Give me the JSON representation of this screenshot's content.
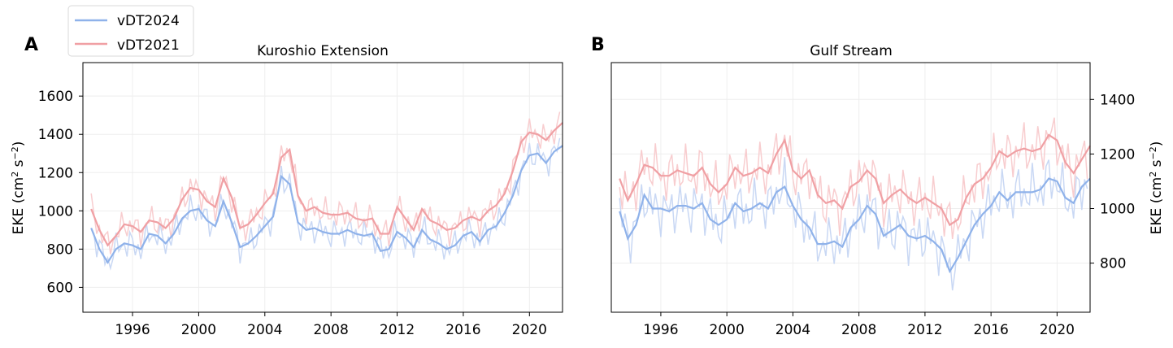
{
  "colors": {
    "vDT2024": "#8fb2ea",
    "vDT2021": "#f0a0a4",
    "vDT2024_raw": "#c9d8f4",
    "vDT2021_raw": "#f8cdcf"
  },
  "legend": {
    "placement": "top-left",
    "entries": [
      "vDT2024",
      "vDT2021"
    ]
  },
  "panels": [
    {
      "letter": "A",
      "title": "Kuroshio Extension"
    },
    {
      "letter": "B",
      "title": "Gulf Stream"
    }
  ],
  "chart_data": [
    {
      "type": "line",
      "panel": "A",
      "title": "Kuroshio Extension",
      "xlabel": "",
      "ylabel": "EKE (cm² s⁻²)",
      "ylabel_base": "EKE (cm",
      "ylabel_sup1": "2",
      "ylabel_mid": " s",
      "ylabel_sup2": "−2",
      "ylabel_end": ")",
      "yaxis_side": "left",
      "xlim": [
        1993.0,
        2022.0
      ],
      "ylim": [
        470,
        1775
      ],
      "xticks": [
        1996,
        2000,
        2004,
        2008,
        2012,
        2016,
        2020
      ],
      "yticks": [
        600,
        800,
        1000,
        1200,
        1400,
        1600
      ],
      "grid": true,
      "x": [
        1993.5,
        1994.0,
        1994.5,
        1995.0,
        1995.5,
        1996.0,
        1996.5,
        1997.0,
        1997.5,
        1998.0,
        1998.5,
        1999.0,
        1999.5,
        2000.0,
        2000.5,
        2001.0,
        2001.5,
        2002.0,
        2002.5,
        2003.0,
        2003.5,
        2004.0,
        2004.5,
        2005.0,
        2005.5,
        2006.0,
        2006.5,
        2007.0,
        2007.5,
        2008.0,
        2008.5,
        2009.0,
        2009.5,
        2010.0,
        2010.5,
        2011.0,
        2011.5,
        2012.0,
        2012.5,
        2013.0,
        2013.5,
        2014.0,
        2014.5,
        2015.0,
        2015.5,
        2016.0,
        2016.5,
        2017.0,
        2017.5,
        2018.0,
        2018.5,
        2019.0,
        2019.5,
        2020.0,
        2020.5,
        2021.0,
        2021.5,
        2022.0
      ],
      "series": [
        {
          "name": "vDT2024",
          "smooth": [
            910,
            800,
            730,
            800,
            830,
            820,
            800,
            880,
            870,
            830,
            880,
            960,
            1000,
            1010,
            950,
            920,
            1050,
            940,
            810,
            830,
            870,
            920,
            970,
            1180,
            1140,
            940,
            900,
            910,
            890,
            880,
            880,
            900,
            880,
            870,
            880,
            790,
            800,
            890,
            860,
            810,
            900,
            850,
            830,
            800,
            820,
            870,
            890,
            840,
            900,
            920,
            990,
            1080,
            1210,
            1290,
            1300,
            1250,
            1310,
            1340
          ]
        },
        {
          "name": "vDT2021",
          "smooth": [
            1010,
            900,
            820,
            870,
            930,
            920,
            890,
            950,
            940,
            910,
            960,
            1060,
            1120,
            1110,
            1050,
            1020,
            1170,
            1070,
            910,
            930,
            980,
            1040,
            1090,
            1280,
            1320,
            1080,
            1000,
            1020,
            990,
            980,
            980,
            990,
            960,
            950,
            960,
            880,
            880,
            1020,
            960,
            900,
            1010,
            950,
            930,
            900,
            910,
            950,
            970,
            950,
            1000,
            1030,
            1090,
            1210,
            1360,
            1410,
            1400,
            1370,
            1420,
            1460
          ]
        }
      ]
    },
    {
      "type": "line",
      "panel": "B",
      "title": "Gulf Stream",
      "xlabel": "",
      "ylabel": "EKE (cm² s⁻²)",
      "ylabel_base": "EKE (cm",
      "ylabel_sup1": "2",
      "ylabel_mid": " s",
      "ylabel_sup2": "−2",
      "ylabel_end": ")",
      "yaxis_side": "right",
      "xlim": [
        1993.0,
        2022.0
      ],
      "ylim": [
        620,
        1535
      ],
      "xticks": [
        1996,
        2000,
        2004,
        2008,
        2012,
        2016,
        2020
      ],
      "yticks": [
        800,
        1000,
        1200,
        1400
      ],
      "grid": true,
      "x": [
        1993.5,
        1994.0,
        1994.5,
        1995.0,
        1995.5,
        1996.0,
        1996.5,
        1997.0,
        1997.5,
        1998.0,
        1998.5,
        1999.0,
        1999.5,
        2000.0,
        2000.5,
        2001.0,
        2001.5,
        2002.0,
        2002.5,
        2003.0,
        2003.5,
        2004.0,
        2004.5,
        2005.0,
        2005.5,
        2006.0,
        2006.5,
        2007.0,
        2007.5,
        2008.0,
        2008.5,
        2009.0,
        2009.5,
        2010.0,
        2010.5,
        2011.0,
        2011.5,
        2012.0,
        2012.5,
        2013.0,
        2013.5,
        2014.0,
        2014.5,
        2015.0,
        2015.5,
        2016.0,
        2016.5,
        2017.0,
        2017.5,
        2018.0,
        2018.5,
        2019.0,
        2019.5,
        2020.0,
        2020.5,
        2021.0,
        2021.5,
        2022.0
      ],
      "series": [
        {
          "name": "vDT2024",
          "smooth": [
            990,
            890,
            940,
            1050,
            1000,
            1000,
            990,
            1010,
            1010,
            1000,
            1020,
            960,
            940,
            960,
            1020,
            990,
            1000,
            1020,
            1000,
            1060,
            1080,
            1010,
            960,
            930,
            870,
            870,
            880,
            860,
            930,
            960,
            1010,
            980,
            900,
            920,
            940,
            900,
            890,
            900,
            880,
            850,
            770,
            820,
            880,
            940,
            980,
            1010,
            1060,
            1030,
            1060,
            1060,
            1060,
            1070,
            1110,
            1100,
            1040,
            1020,
            1080,
            1110
          ]
        },
        {
          "name": "vDT2021",
          "smooth": [
            1110,
            1030,
            1090,
            1160,
            1150,
            1120,
            1120,
            1140,
            1130,
            1120,
            1150,
            1090,
            1060,
            1090,
            1150,
            1120,
            1130,
            1150,
            1130,
            1200,
            1250,
            1140,
            1110,
            1140,
            1050,
            1020,
            1030,
            1000,
            1080,
            1100,
            1140,
            1110,
            1020,
            1050,
            1070,
            1040,
            1020,
            1040,
            1020,
            1000,
            940,
            960,
            1040,
            1090,
            1110,
            1150,
            1210,
            1190,
            1210,
            1220,
            1210,
            1220,
            1270,
            1250,
            1170,
            1130,
            1180,
            1230
          ]
        }
      ]
    }
  ]
}
